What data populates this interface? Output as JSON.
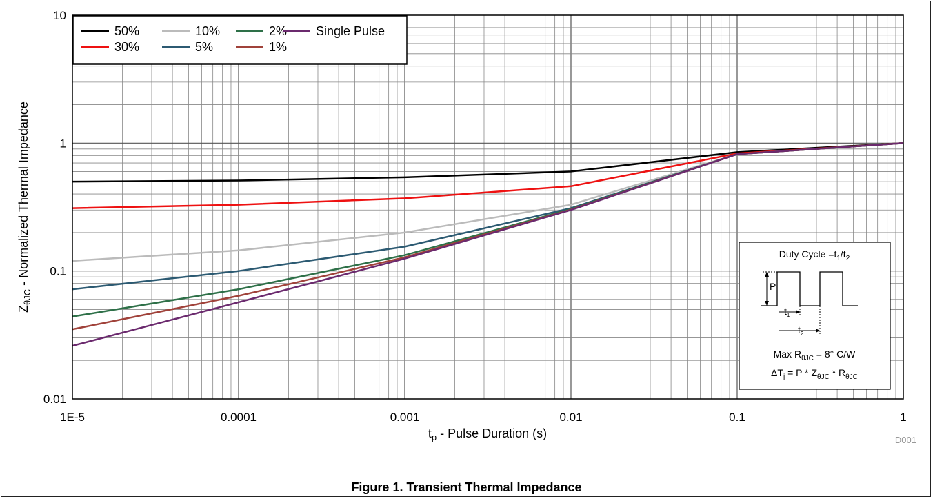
{
  "caption": "Figure 1. Transient Thermal Impedance",
  "figure_code": "D001",
  "chart_data": {
    "type": "line",
    "xscale": "log",
    "yscale": "log",
    "xlim": [
      1e-05,
      1
    ],
    "ylim": [
      0.01,
      10
    ],
    "grid": true,
    "legend_position": "top-left",
    "x_tick_labels": [
      "1E-5",
      "0.0001",
      "0.001",
      "0.01",
      "0.1",
      "1"
    ],
    "y_tick_labels": [
      "0.01",
      "0.1",
      "1",
      "10"
    ],
    "xlabel": {
      "main": "t",
      "sub": "p",
      "rest": " - Pulse Duration (s)"
    },
    "ylabel": {
      "main": "Z",
      "sub": "θJC",
      "rest": " - Normalized Thermal Impedance"
    },
    "x": [
      1e-05,
      0.0001,
      0.001,
      0.01,
      0.1,
      1
    ],
    "series": [
      {
        "name": "50%",
        "color": "#000000",
        "values": [
          0.5,
          0.51,
          0.54,
          0.6,
          0.85,
          1.0
        ]
      },
      {
        "name": "30%",
        "color": "#ee1111",
        "values": [
          0.31,
          0.33,
          0.37,
          0.46,
          0.83,
          1.0
        ]
      },
      {
        "name": "10%",
        "color": "#bbbbbb",
        "values": [
          0.12,
          0.145,
          0.2,
          0.33,
          0.82,
          1.0
        ]
      },
      {
        "name": "5%",
        "color": "#2c5a72",
        "values": [
          0.072,
          0.1,
          0.155,
          0.31,
          0.82,
          1.0
        ]
      },
      {
        "name": "2%",
        "color": "#2e7048",
        "values": [
          0.044,
          0.072,
          0.133,
          0.305,
          0.82,
          1.0
        ]
      },
      {
        "name": "1%",
        "color": "#a0423a",
        "values": [
          0.035,
          0.064,
          0.128,
          0.302,
          0.82,
          1.0
        ]
      },
      {
        "name": "Single Pulse",
        "color": "#6b2a6e",
        "values": [
          0.026,
          0.057,
          0.125,
          0.3,
          0.82,
          1.0
        ]
      }
    ],
    "inset": {
      "title": {
        "main": "Duty Cycle =t",
        "s1": "1",
        "mid": "/t",
        "s2": "2"
      },
      "p_label": "P",
      "t1": {
        "main": "t",
        "sub": "1"
      },
      "t2": {
        "main": "t",
        "sub": "2"
      },
      "line1": {
        "a": "Max R",
        "sub": "θJC",
        "b": " = 8° C/W"
      },
      "line2": {
        "a": "ΔT",
        "sub1": "j",
        "b": " = P * Z",
        "sub2": "θJC",
        "c": " * R",
        "sub3": "θJC"
      }
    }
  }
}
